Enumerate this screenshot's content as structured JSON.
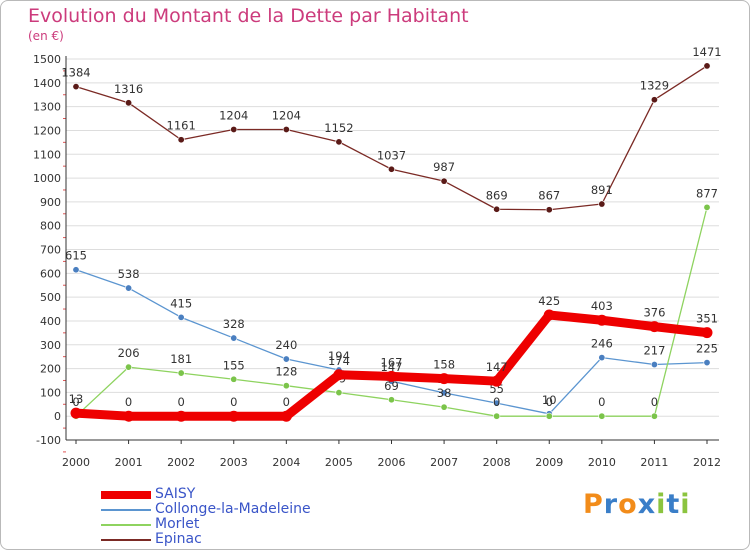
{
  "header": {
    "title": "Evolution du Montant de la Dette par Habitant",
    "unit": "(en €)"
  },
  "colors": {
    "title": "#cc3b7c",
    "axis": "#333333",
    "grid": "#dddddd",
    "legend_text": "#3a55c8"
  },
  "logo": {
    "letters": [
      "P",
      "r",
      "o",
      "x",
      "i",
      "t",
      "i"
    ],
    "colors": [
      "#f28c1a",
      "#3a7ec8",
      "#f28c1a",
      "#3a7ec8",
      "#8bc43f",
      "#3a7ec8",
      "#8bc43f"
    ]
  },
  "chart_data": {
    "type": "line",
    "title": "Evolution du Montant de la Dette par Habitant",
    "ylabel": "(en €)",
    "xlabel": "",
    "x": [
      "2000",
      "2001",
      "2002",
      "2003",
      "2004",
      "2005",
      "2006",
      "2007",
      "2008",
      "2009",
      "2010",
      "2011",
      "2012"
    ],
    "ylim": [
      -100,
      1500
    ],
    "yticks": [
      -100,
      0,
      100,
      200,
      300,
      400,
      500,
      600,
      700,
      800,
      900,
      1000,
      1100,
      1200,
      1300,
      1400,
      1500
    ],
    "grid": true,
    "legend_position": "bottom-left",
    "series": [
      {
        "name": "Epinac",
        "color": "#7b2a25",
        "marker": "#5a1a17",
        "width": "thin",
        "values": [
          1384,
          1316,
          1161,
          1204,
          1204,
          1152,
          1037,
          987,
          869,
          867,
          891,
          1329,
          1471
        ],
        "labels": [
          "1384",
          "1316",
          "1161",
          "1204",
          "1204",
          "1152",
          "1037",
          "987",
          "869",
          "867",
          "891",
          "1329",
          "1471"
        ]
      },
      {
        "name": "Collonge-la-Madeleine",
        "color": "#5b95d0",
        "marker": "#4a7fc0",
        "width": "thin",
        "values": [
          615,
          538,
          415,
          328,
          240,
          194,
          147,
          98,
          55,
          10,
          246,
          217,
          225
        ],
        "labels": [
          "615",
          "538",
          "415",
          "328",
          "240",
          "194",
          "147",
          "98",
          "55",
          "10",
          "246",
          "217",
          "225"
        ]
      },
      {
        "name": "Morlet",
        "color": "#8ed35f",
        "marker": "#7bc44a",
        "width": "thin",
        "values": [
          0,
          206,
          181,
          155,
          128,
          99,
          69,
          38,
          0,
          0,
          0,
          0,
          877
        ],
        "labels": [
          "0",
          "206",
          "181",
          "155",
          "128",
          "99",
          "69",
          "38",
          "0",
          "0",
          "0",
          "0",
          "877"
        ]
      },
      {
        "name": "SAISY",
        "color": "#ee0000",
        "marker": "#ee0000",
        "width": "thick",
        "values": [
          13,
          0,
          0,
          0,
          0,
          174,
          167,
          158,
          147,
          425,
          403,
          376,
          351
        ],
        "labels": [
          "13",
          "0",
          "0",
          "0",
          "0",
          "174",
          "167",
          "158",
          "147",
          "425",
          "403",
          "376",
          "351"
        ]
      }
    ],
    "legend": [
      "SAISY",
      "Collonge-la-Madeleine",
      "Morlet",
      "Epinac"
    ]
  }
}
